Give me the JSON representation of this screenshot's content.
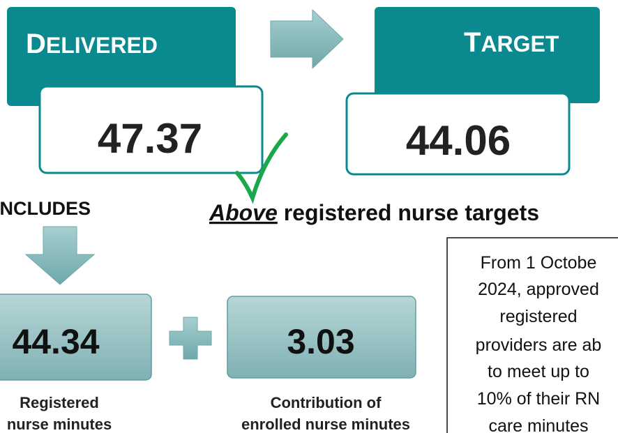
{
  "delivered": {
    "label": "DELIVERED",
    "value": "47.37"
  },
  "target": {
    "label": "TARGET",
    "value": "44.06"
  },
  "includes": "INCLUDES",
  "statement": {
    "emphasis": "Above",
    "rest": "registered nurse targets"
  },
  "components": [
    {
      "value": "44.34",
      "label_lines": [
        "Registered",
        "nurse minutes"
      ]
    },
    {
      "value": "3.03",
      "label_lines": [
        "Contribution of",
        "enrolled nurse minutes"
      ]
    }
  ],
  "note_lines": [
    "From 1 Octobe",
    "2024, approved",
    "registered",
    "providers are ab",
    "to meet up to",
    "10% of their RN",
    "care minutes"
  ]
}
